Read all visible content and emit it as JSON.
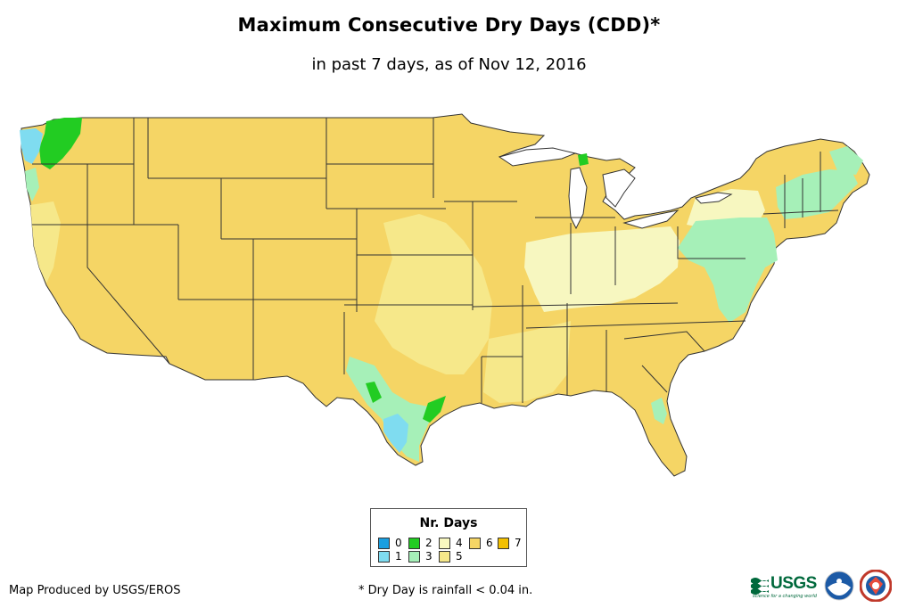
{
  "title": "Maximum Consecutive Dry Days (CDD)*",
  "subtitle": "in past 7 days, as of Nov 12, 2016",
  "legend": {
    "title": "Nr. Days",
    "items": [
      {
        "label": "0",
        "color": "#1a9fe0"
      },
      {
        "label": "1",
        "color": "#7fdcf0"
      },
      {
        "label": "2",
        "color": "#22cc22"
      },
      {
        "label": "3",
        "color": "#a6f0b8"
      },
      {
        "label": "4",
        "color": "#f7f7c0"
      },
      {
        "label": "5",
        "color": "#f6e88a"
      },
      {
        "label": "6",
        "color": "#f5d565"
      },
      {
        "label": "7",
        "color": "#f3c000"
      }
    ]
  },
  "credit": "Map Produced by USGS/EROS",
  "footnote": "* Dry Day is rainfall < 0.04 in.",
  "logos": {
    "usgs": "USGS",
    "usgs_tagline": "science for a changing world",
    "noaa": "NOAA",
    "nws": "NATIONAL WEATHER SERVICE"
  },
  "colors": {
    "base": "#f5d565",
    "border": "#333333"
  }
}
